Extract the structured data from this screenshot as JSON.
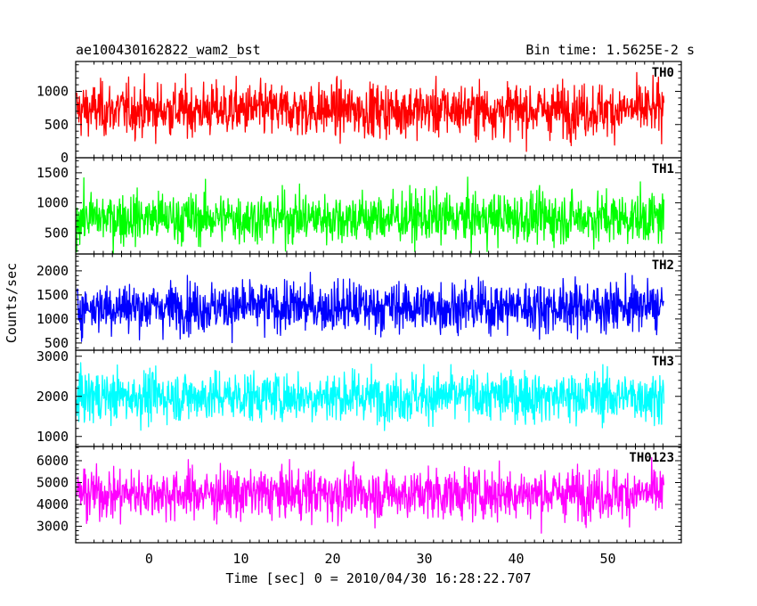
{
  "chart_data": {
    "type": "line",
    "title": "ae100430162822_wam2_bst",
    "subtitle": "Bin time: 1.5625E-2 s",
    "xlabel": "Time [sec] 0 = 2010/04/30 16:28:22.707",
    "ylabel": "Counts/sec",
    "xlim": [
      -8,
      58
    ],
    "x_data_range": [
      -7.9,
      56.1
    ],
    "x_ticks": [
      0,
      10,
      20,
      30,
      40,
      50
    ],
    "x_tick_labels": [
      "0",
      "10",
      "20",
      "30",
      "40",
      "50"
    ],
    "grid": false,
    "panels": [
      {
        "name": "TH0",
        "color": "#ff0000",
        "ylim": [
          0,
          1450
        ],
        "yticks": [
          0,
          500,
          1000
        ],
        "ytick_labels": [
          "0",
          "500",
          "1000"
        ],
        "typical_range": [
          0,
          1450
        ],
        "mean": 720
      },
      {
        "name": "TH1",
        "color": "#00ff00",
        "ylim": [
          150,
          1750
        ],
        "yticks": [
          500,
          1000,
          1500
        ],
        "ytick_labels": [
          "500",
          "1000",
          "1500"
        ],
        "typical_range": [
          150,
          1700
        ],
        "mean": 750
      },
      {
        "name": "TH2",
        "color": "#0000ff",
        "ylim": [
          350,
          2350
        ],
        "yticks": [
          500,
          1000,
          1500,
          2000
        ],
        "ytick_labels": [
          "500",
          "1000",
          "1500",
          "2000"
        ],
        "typical_range": [
          380,
          2300
        ],
        "mean": 1250
      },
      {
        "name": "TH3",
        "color": "#00ffff",
        "ylim": [
          750,
          3150
        ],
        "yticks": [
          1000,
          2000,
          3000
        ],
        "ytick_labels": [
          "1000",
          "2000",
          "3000"
        ],
        "typical_range": [
          800,
          3100
        ],
        "mean": 2000
      },
      {
        "name": "TH0123",
        "color": "#ff00ff",
        "ylim": [
          2250,
          6650
        ],
        "yticks": [
          3000,
          4000,
          5000,
          6000
        ],
        "ytick_labels": [
          "3000",
          "4000",
          "5000",
          "6000"
        ],
        "typical_range": [
          2300,
          6500
        ],
        "mean": 4500
      }
    ]
  }
}
